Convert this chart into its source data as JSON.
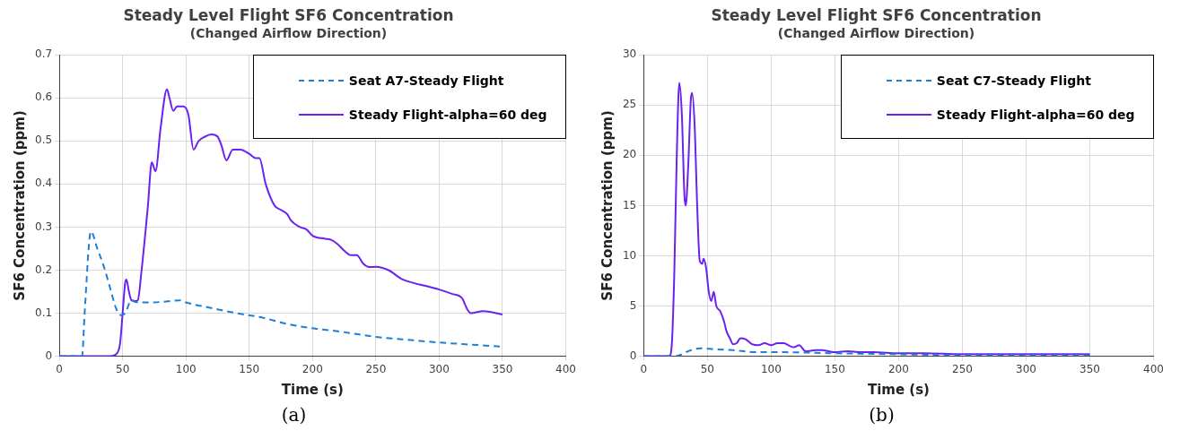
{
  "chart_data": [
    {
      "type": "line",
      "title": "Steady Level Flight SF6 Concentration",
      "subtitle": "(Changed Airflow Direction)",
      "xlabel": "Time (s)",
      "ylabel": "SF6 Concentration (ppm)",
      "xlim": [
        0,
        400
      ],
      "xticks": [
        0,
        50,
        100,
        150,
        200,
        250,
        300,
        350,
        400
      ],
      "ylim": [
        0,
        0.7
      ],
      "yticks": [
        0,
        0.1,
        0.2,
        0.3,
        0.4,
        0.5,
        0.6,
        0.7
      ],
      "grid": true,
      "legend": "top right",
      "marker": "none",
      "annotations": [
        "(a)"
      ],
      "series": [
        {
          "name": "Seat A7-Steady Flight",
          "color": "#1f7fd4",
          "line_style": "dashed",
          "x": [
            0,
            18,
            20,
            25,
            30,
            35,
            40,
            45,
            49,
            52,
            57,
            60,
            70,
            80,
            95,
            100,
            120,
            140,
            160,
            180,
            200,
            220,
            250,
            280,
            300,
            330,
            350
          ],
          "values": [
            0,
            0,
            0.1,
            0.29,
            0.25,
            0.21,
            0.16,
            0.11,
            0.095,
            0.1,
            0.13,
            0.126,
            0.125,
            0.126,
            0.13,
            0.125,
            0.112,
            0.1,
            0.09,
            0.075,
            0.065,
            0.058,
            0.045,
            0.037,
            0.032,
            0.026,
            0.022
          ]
        },
        {
          "name": "Steady Flight-alpha=60 deg",
          "color": "#6a22f0",
          "line_style": "solid",
          "x": [
            0,
            40,
            45,
            48,
            50,
            52,
            53,
            55,
            57,
            60,
            62,
            65,
            70,
            73,
            76,
            80,
            85,
            87,
            90,
            93,
            98,
            102,
            106,
            110,
            115,
            120,
            125,
            128,
            132,
            137,
            143,
            150,
            155,
            158,
            163,
            170,
            175,
            180,
            183,
            190,
            195,
            200,
            210,
            215,
            220,
            225,
            230,
            235,
            240,
            245,
            250,
            260,
            270,
            280,
            290,
            300,
            310,
            318,
            322,
            325,
            335,
            340,
            345,
            350
          ],
          "values": [
            0,
            0,
            0.005,
            0.03,
            0.1,
            0.17,
            0.178,
            0.15,
            0.13,
            0.128,
            0.13,
            0.2,
            0.35,
            0.45,
            0.43,
            0.53,
            0.62,
            0.6,
            0.57,
            0.58,
            0.58,
            0.56,
            0.48,
            0.5,
            0.51,
            0.515,
            0.51,
            0.49,
            0.455,
            0.48,
            0.48,
            0.47,
            0.46,
            0.46,
            0.4,
            0.35,
            0.34,
            0.33,
            0.315,
            0.3,
            0.295,
            0.28,
            0.273,
            0.27,
            0.26,
            0.245,
            0.235,
            0.235,
            0.215,
            0.207,
            0.208,
            0.2,
            0.18,
            0.17,
            0.163,
            0.155,
            0.145,
            0.135,
            0.11,
            0.1,
            0.105,
            0.103,
            0.1,
            0.097
          ]
        }
      ]
    },
    {
      "type": "line",
      "title": "Steady Level Flight SF6 Concentration",
      "subtitle": "(Changed Airflow Direction)",
      "xlabel": "Time (s)",
      "ylabel": "SF6 Concentration (ppm)",
      "xlim": [
        0,
        400
      ],
      "xticks": [
        0,
        50,
        100,
        150,
        200,
        250,
        300,
        350,
        400
      ],
      "ylim": [
        0,
        30
      ],
      "yticks": [
        0,
        5,
        10,
        15,
        20,
        25,
        30
      ],
      "grid": true,
      "legend": "top right",
      "marker": "none",
      "annotations": [
        "(b)"
      ],
      "series": [
        {
          "name": "Seat C7-Steady Flight",
          "color": "#1f7fd4",
          "line_style": "dashed",
          "x": [
            0,
            25,
            30,
            35,
            45,
            55,
            70,
            90,
            110,
            150,
            200,
            250,
            300,
            350
          ],
          "values": [
            0,
            0,
            0.2,
            0.5,
            0.8,
            0.7,
            0.6,
            0.4,
            0.4,
            0.3,
            0.2,
            0.1,
            0.1,
            0.1
          ]
        },
        {
          "name": "Steady Flight-alpha=60 deg",
          "color": "#6a22f0",
          "line_style": "solid",
          "x": [
            0,
            20,
            22,
            24,
            26,
            28,
            30,
            32,
            33,
            35,
            37,
            38,
            40,
            42,
            44,
            46,
            47,
            49,
            51,
            53,
            55,
            57,
            60,
            63,
            65,
            68,
            70,
            73,
            76,
            80,
            85,
            90,
            95,
            100,
            105,
            110,
            115,
            118,
            122,
            127,
            135,
            140,
            145,
            150,
            160,
            170,
            180,
            200,
            220,
            250,
            300,
            350
          ],
          "values": [
            0,
            0,
            1,
            8,
            20,
            27.2,
            24,
            16,
            15,
            19,
            25.5,
            26.2,
            23,
            15,
            9.5,
            9.2,
            9.7,
            8.8,
            6.5,
            5.5,
            6.4,
            5,
            4.5,
            3.5,
            2.5,
            1.7,
            1.2,
            1.3,
            1.8,
            1.7,
            1.2,
            1.1,
            1.3,
            1.1,
            1.3,
            1.3,
            1,
            0.9,
            1.1,
            0.5,
            0.6,
            0.6,
            0.5,
            0.4,
            0.5,
            0.4,
            0.4,
            0.3,
            0.3,
            0.2,
            0.2,
            0.2
          ]
        }
      ]
    }
  ]
}
